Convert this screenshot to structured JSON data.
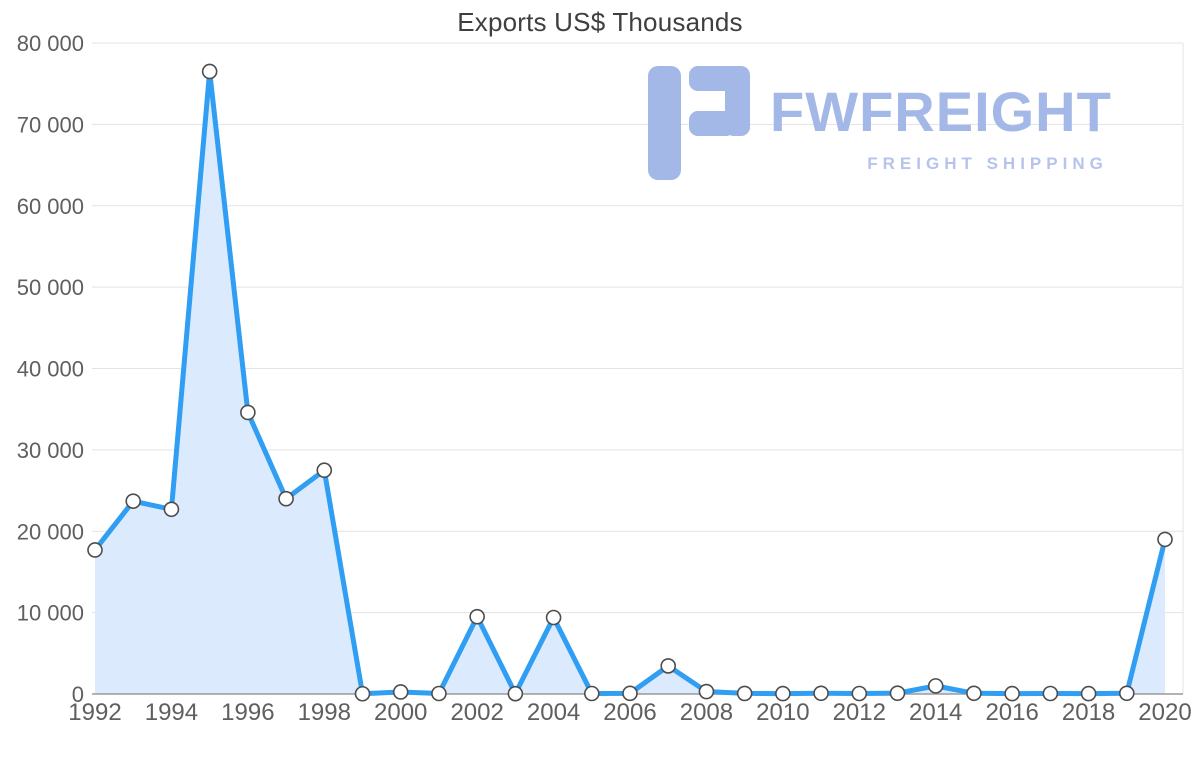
{
  "chart_data": {
    "type": "area",
    "title": "Exports US$ Thousands",
    "xlabel": "",
    "ylabel": "US$ Thousands",
    "x": [
      1992,
      1993,
      1994,
      1995,
      1996,
      1997,
      1998,
      1999,
      2000,
      2001,
      2002,
      2003,
      2004,
      2005,
      2006,
      2007,
      2008,
      2009,
      2010,
      2011,
      2012,
      2013,
      2014,
      2015,
      2016,
      2017,
      2018,
      2019,
      2020
    ],
    "values": [
      17700,
      23700,
      22700,
      76500,
      34600,
      24000,
      27500,
      30,
      250,
      60,
      9500,
      40,
      9400,
      60,
      80,
      3450,
      300,
      70,
      50,
      90,
      60,
      100,
      1000,
      90,
      50,
      60,
      50,
      90,
      19000
    ],
    "ylim": [
      0,
      80000
    ],
    "y_tick_labels": [
      "0",
      "10 000",
      "20 000",
      "30 000",
      "40 000",
      "50 000",
      "60 000",
      "70 000",
      "80 000"
    ],
    "y_tick_step": 10000,
    "x_tick_labels": [
      "1992",
      "1994",
      "1996",
      "1998",
      "2000",
      "2002",
      "2004",
      "2006",
      "2008",
      "2010",
      "2012",
      "2014",
      "2016",
      "2018",
      "2020"
    ],
    "grid": "horizontal",
    "legend": "none",
    "series_name": "Exports"
  },
  "watermark": {
    "brand": "FWFREIGHT",
    "tagline": "FREIGHT SHIPPING"
  },
  "colors": {
    "line": "#2f9ef3",
    "area_fill": "#dbeafc",
    "marker_fill": "#ffffff",
    "marker_stroke": "#4d4d4d",
    "grid": "#e3e3e3",
    "axis_line": "#9a9a9a",
    "tick_text": "#5f5f5f",
    "title_text": "#3f3f3f",
    "watermark_main": "#a3b8e6",
    "watermark_sub": "#b7c3ec"
  }
}
